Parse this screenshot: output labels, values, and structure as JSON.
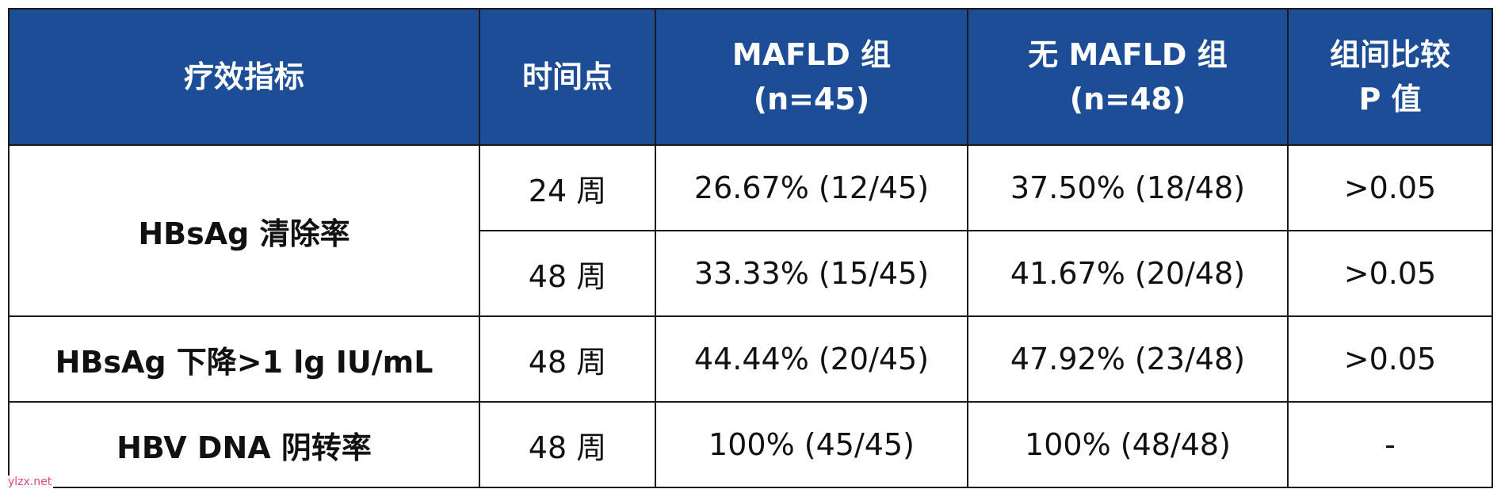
{
  "header": {
    "metric": "疗效指标",
    "timepoint": "时间点",
    "mafld_line1": "MAFLD 组",
    "mafld_line2": "(n=45)",
    "no_mafld_line1": "无 MAFLD 组",
    "no_mafld_line2": "(n=48)",
    "p_line1": "组间比较",
    "p_line2": "P 值"
  },
  "rows": [
    {
      "metric": "HBsAg 清除率",
      "sub": [
        {
          "timepoint": "24 周",
          "mafld": "26.67% (12/45)",
          "no_mafld": "37.50% (18/48)",
          "p": ">0.05"
        },
        {
          "timepoint": "48 周",
          "mafld": "33.33% (15/45)",
          "no_mafld": "41.67% (20/48)",
          "p": ">0.05"
        }
      ]
    },
    {
      "metric": "HBsAg 下降>1 lg IU/mL",
      "sub": [
        {
          "timepoint": "48 周",
          "mafld": "44.44% (20/45)",
          "no_mafld": "47.92% (23/48)",
          "p": ">0.05"
        }
      ]
    },
    {
      "metric": "HBV DNA 阴转率",
      "sub": [
        {
          "timepoint": "48 周",
          "mafld": "100% (45/45)",
          "no_mafld": "100% (48/48)",
          "p": "-"
        }
      ]
    }
  ],
  "watermark": "ylzx.net",
  "colors": {
    "header_bg": "#1d4d96",
    "header_text": "#ffffff",
    "border": "#1a1a1a",
    "watermark": "#e0457b"
  }
}
